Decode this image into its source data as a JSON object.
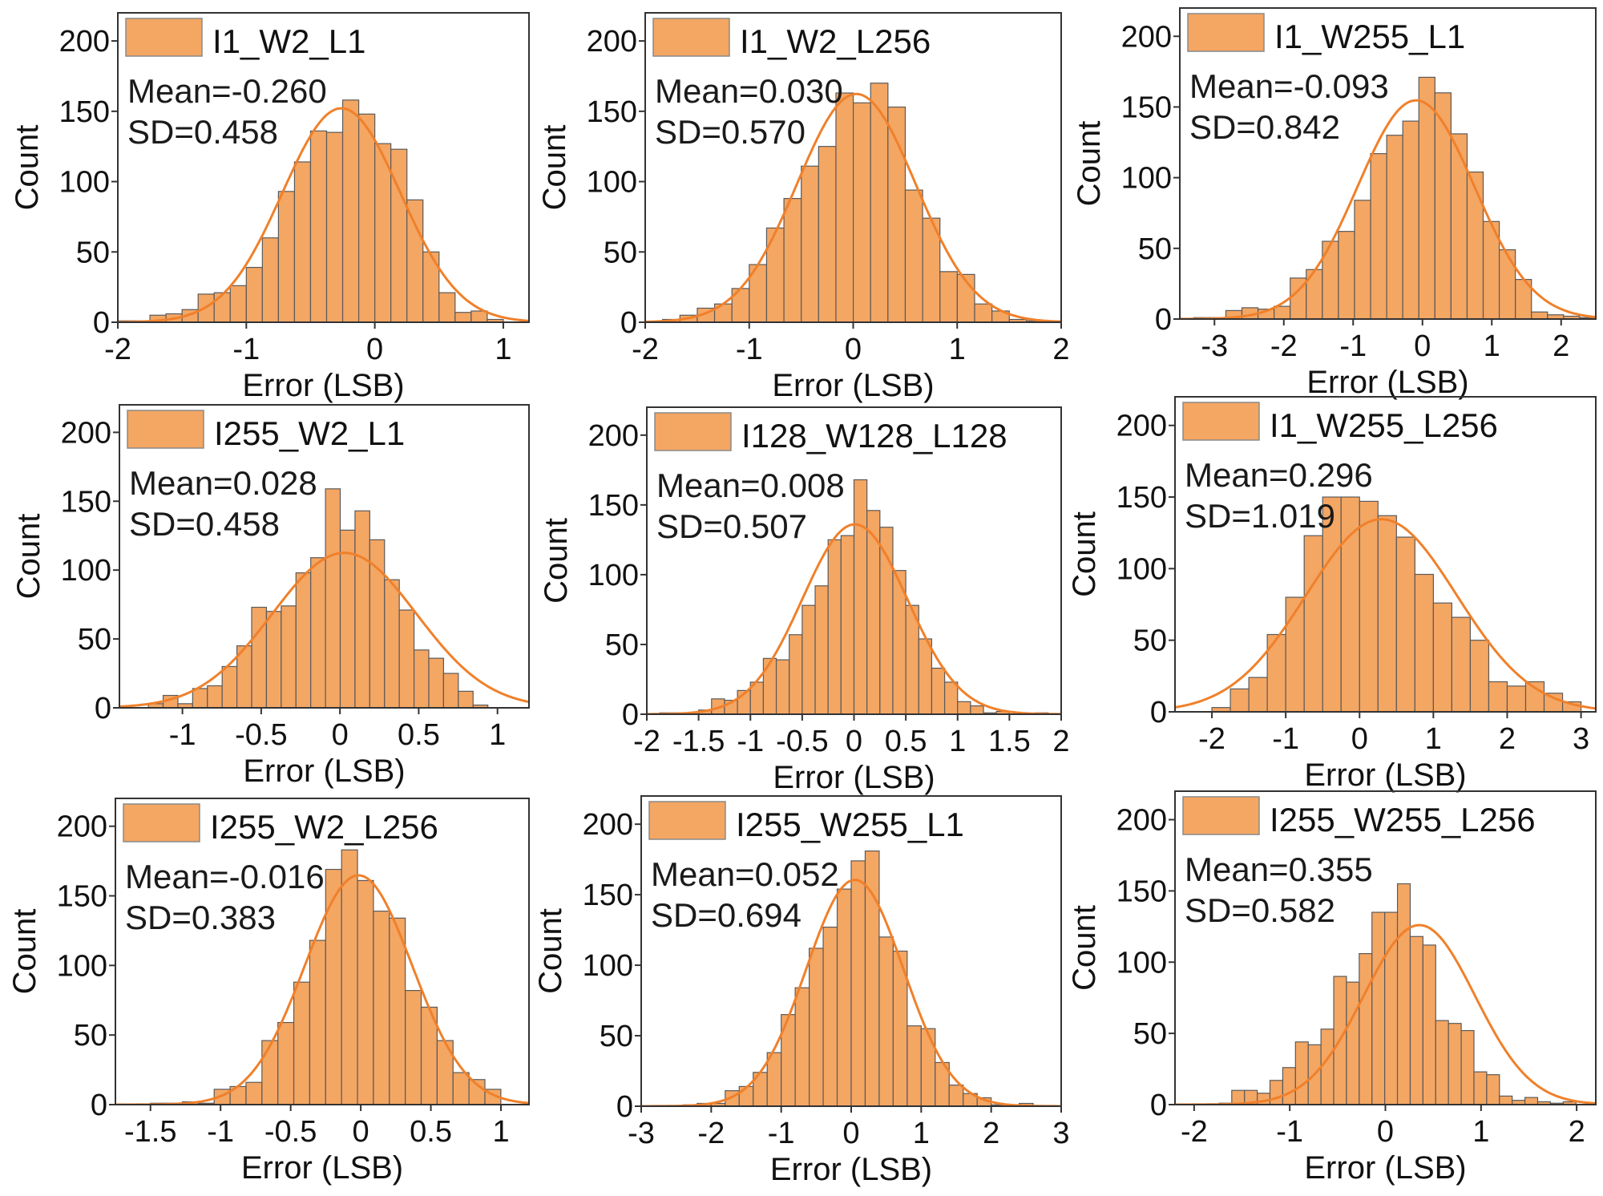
{
  "colors": {
    "bar_fill": "#F4A663",
    "bar_edge": "#5a5a5a",
    "fit_curve": "#F0802A",
    "frame": "#333333"
  },
  "chart_data": [
    {
      "type": "bar",
      "legend": "I1_W2_L1",
      "mean_text": "Mean=-0.260",
      "sd_text": "SD=0.458",
      "fit": {
        "mean": -0.26,
        "sd": 0.458
      },
      "xlabel": "Error (LSB)",
      "ylabel": "Count",
      "xlim": [
        -2,
        1.2
      ],
      "ylim": [
        0,
        220
      ],
      "xticks": [
        -2,
        -1,
        0,
        1
      ],
      "yticks": [
        0,
        50,
        100,
        150,
        200
      ],
      "bin_start": -2.0,
      "bin_width": 0.125,
      "counts": [
        1,
        1,
        5,
        6,
        9,
        20,
        21,
        26,
        39,
        60,
        93,
        114,
        136,
        135,
        158,
        148,
        127,
        123,
        87,
        50,
        21,
        7,
        8,
        2
      ]
    },
    {
      "type": "bar",
      "legend": "I1_W2_L256",
      "mean_text": "Mean=0.030",
      "sd_text": "SD=0.570",
      "fit": {
        "mean": 0.03,
        "sd": 0.57
      },
      "xlabel": "Error (LSB)",
      "ylabel": "Count",
      "xlim": [
        -2,
        2
      ],
      "ylim": [
        0,
        220
      ],
      "xticks": [
        -2,
        -1,
        0,
        1,
        2
      ],
      "yticks": [
        0,
        50,
        100,
        150,
        200
      ],
      "bin_start": -1.833,
      "bin_width": 0.1667,
      "counts": [
        2,
        5,
        10,
        13,
        24,
        41,
        67,
        88,
        111,
        125,
        163,
        156,
        170,
        153,
        94,
        74,
        36,
        34,
        13,
        8,
        2,
        1,
        1
      ]
    },
    {
      "type": "bar",
      "legend": "I1_W255_L1",
      "mean_text": "Mean=-0.093",
      "sd_text": "SD=0.842",
      "fit": {
        "mean": -0.093,
        "sd": 0.842
      },
      "xlabel": "Error (LSB)",
      "ylabel": "Count",
      "xlim": [
        -3.5,
        2.5
      ],
      "ylim": [
        0,
        220
      ],
      "xticks": [
        -3,
        -2,
        -1,
        0,
        1,
        2
      ],
      "yticks": [
        0,
        50,
        100,
        150,
        200
      ],
      "bin_start": -3.3,
      "bin_width": 0.232,
      "counts": [
        1,
        1,
        6,
        8,
        7,
        9,
        29,
        35,
        55,
        62,
        84,
        117,
        130,
        140,
        171,
        160,
        131,
        104,
        69,
        49,
        28,
        5,
        3,
        2,
        1
      ]
    },
    {
      "type": "bar",
      "legend": "I255_W2_L1",
      "mean_text": "Mean=0.028",
      "sd_text": "SD=0.458",
      "fit": {
        "mean": 0.028,
        "sd": 0.458
      },
      "xlabel": "Error (LSB)",
      "ylabel": "Count",
      "xlim": [
        -1.4,
        1.2
      ],
      "ylim": [
        0,
        220
      ],
      "xticks": [
        -1,
        -0.5,
        0,
        0.5,
        1
      ],
      "yticks": [
        0,
        50,
        100,
        150,
        200
      ],
      "bin_start": -1.31,
      "bin_width": 0.0937,
      "counts": [
        0,
        3,
        9,
        3,
        14,
        16,
        30,
        45,
        73,
        70,
        74,
        98,
        109,
        159,
        129,
        143,
        122,
        93,
        71,
        42,
        36,
        25,
        12,
        2,
        0
      ]
    },
    {
      "type": "bar",
      "legend": "I128_W128_L128",
      "mean_text": "Mean=0.008",
      "sd_text": "SD=0.507",
      "fit": {
        "mean": 0.008,
        "sd": 0.507
      },
      "xlabel": "Error (LSB)",
      "ylabel": "Count",
      "xlim": [
        -2,
        2
      ],
      "ylim": [
        0,
        220
      ],
      "xticks": [
        -2,
        -1.5,
        -1,
        -0.5,
        0,
        0.5,
        1,
        1.5,
        2
      ],
      "yticks": [
        0,
        50,
        100,
        150,
        200
      ],
      "bin_start": -1.875,
      "bin_width": 0.125,
      "counts": [
        1,
        1,
        0,
        3,
        11,
        10,
        17,
        23,
        40,
        39,
        57,
        78,
        92,
        125,
        128,
        168,
        146,
        134,
        103,
        78,
        54,
        33,
        23,
        9,
        6,
        1,
        2,
        0,
        0,
        1
      ]
    },
    {
      "type": "bar",
      "legend": "I1_W255_L256",
      "mean_text": "Mean=0.296",
      "sd_text": "SD=1.019",
      "fit": {
        "mean": 0.296,
        "sd": 1.019
      },
      "xlabel": "Error (LSB)",
      "ylabel": "Count",
      "xlim": [
        -2.5,
        3.2
      ],
      "ylim": [
        0,
        220
      ],
      "xticks": [
        -2,
        -1,
        0,
        1,
        2,
        3
      ],
      "yticks": [
        0,
        50,
        100,
        150,
        200
      ],
      "bin_start": -2.0,
      "bin_width": 0.25,
      "counts": [
        3,
        16,
        24,
        54,
        80,
        123,
        150,
        150,
        147,
        137,
        122,
        96,
        76,
        66,
        50,
        21,
        18,
        21,
        13,
        7
      ]
    },
    {
      "type": "bar",
      "legend": "I255_W2_L256",
      "mean_text": "Mean=-0.016",
      "sd_text": "SD=0.383",
      "fit": {
        "mean": -0.016,
        "sd": 0.383
      },
      "xlabel": "Error (LSB)",
      "ylabel": "Count",
      "xlim": [
        -1.75,
        1.2
      ],
      "ylim": [
        0,
        220
      ],
      "xticks": [
        -1.5,
        -1,
        -0.5,
        0,
        0.5,
        1
      ],
      "yticks": [
        0,
        50,
        100,
        150,
        200
      ],
      "bin_start": -1.5,
      "bin_width": 0.1136,
      "counts": [
        1,
        1,
        2,
        1,
        11,
        13,
        16,
        46,
        59,
        88,
        118,
        169,
        183,
        161,
        139,
        134,
        82,
        70,
        46,
        23,
        18,
        11
      ]
    },
    {
      "type": "bar",
      "legend": "I255_W255_L1",
      "mean_text": "Mean=0.052",
      "sd_text": "SD=0.694",
      "fit": {
        "mean": 0.052,
        "sd": 0.694
      },
      "xlabel": "Error (LSB)",
      "ylabel": "Count",
      "xlim": [
        -3,
        3
      ],
      "ylim": [
        0,
        220
      ],
      "xticks": [
        -3,
        -2,
        -1,
        0,
        1,
        2,
        3
      ],
      "yticks": [
        0,
        50,
        100,
        150,
        200
      ],
      "bin_start": -2.4,
      "bin_width": 0.2,
      "counts": [
        1,
        2,
        2,
        11,
        14,
        24,
        38,
        65,
        84,
        112,
        127,
        154,
        174,
        181,
        120,
        110,
        57,
        55,
        31,
        15,
        9,
        6,
        1,
        1,
        2
      ]
    },
    {
      "type": "bar",
      "legend": "I255_W255_L256",
      "mean_text": "Mean=0.355",
      "sd_text": "SD=0.582",
      "fit": {
        "mean": 0.355,
        "sd": 0.582
      },
      "xlabel": "Error (LSB)",
      "ylabel": "Count",
      "xlim": [
        -2.2,
        2.2
      ],
      "ylim": [
        0,
        220
      ],
      "xticks": [
        -2,
        -1,
        0,
        1,
        2
      ],
      "yticks": [
        0,
        50,
        100,
        150,
        200
      ],
      "bin_start": -1.74,
      "bin_width": 0.1333,
      "counts": [
        1,
        10,
        10,
        8,
        17,
        26,
        44,
        42,
        53,
        90,
        86,
        106,
        135,
        135,
        155,
        118,
        112,
        59,
        57,
        52,
        23,
        21,
        6,
        3,
        5,
        2,
        1,
        2
      ]
    }
  ]
}
